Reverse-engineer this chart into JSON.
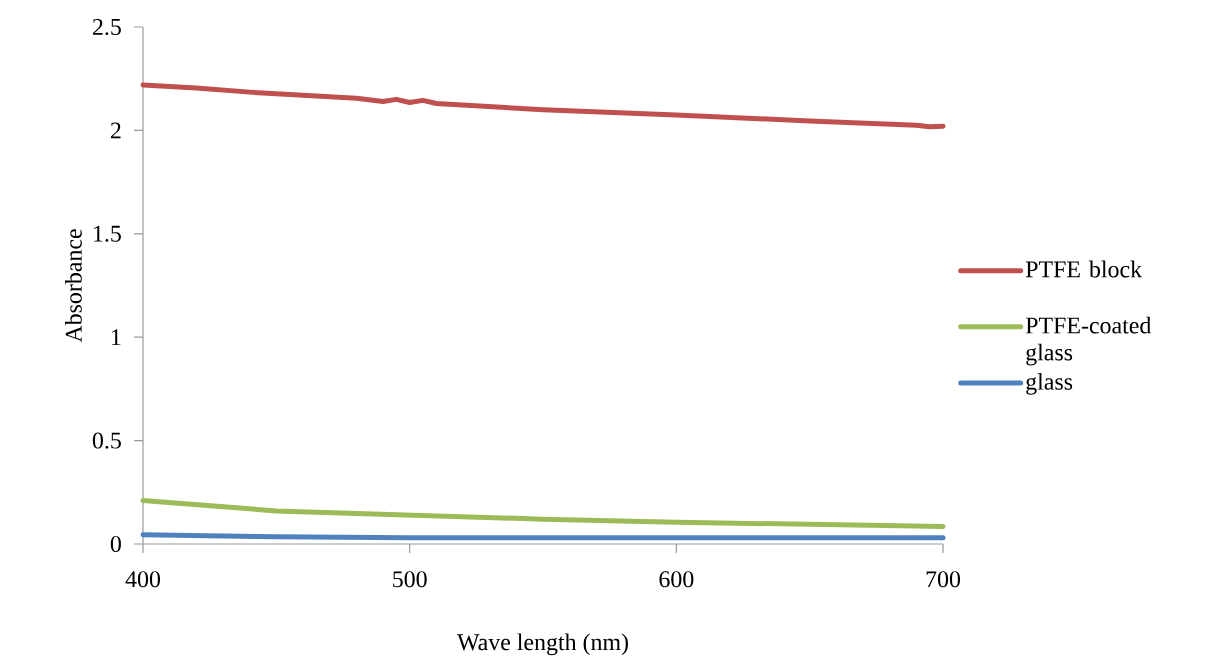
{
  "chart_data": {
    "type": "line",
    "xlabel": "Wave length (nm)",
    "ylabel": "Absorbance",
    "xlim": [
      400,
      700
    ],
    "ylim": [
      0,
      2.5
    ],
    "xticks": [
      400,
      500,
      600,
      700
    ],
    "yticks": [
      0,
      0.5,
      1,
      1.5,
      2,
      2.5
    ],
    "legend": "right",
    "marker": "none",
    "line_style": "solid",
    "series": [
      {
        "name": "PTFE block",
        "color": "#c0504d",
        "x": [
          400,
          420,
          440,
          460,
          480,
          490,
          495,
          500,
          505,
          510,
          550,
          600,
          650,
          690,
          695,
          700
        ],
        "values": [
          2.22,
          2.205,
          2.185,
          2.17,
          2.155,
          2.14,
          2.15,
          2.135,
          2.145,
          2.13,
          2.1,
          2.075,
          2.045,
          2.025,
          2.018,
          2.02
        ]
      },
      {
        "name": "PTFE-coated glass",
        "color": "#9bbb59",
        "x": [
          400,
          450,
          500,
          550,
          600,
          650,
          700
        ],
        "values": [
          0.21,
          0.16,
          0.14,
          0.12,
          0.105,
          0.095,
          0.085
        ]
      },
      {
        "name": "glass",
        "color": "#4f81bd",
        "x": [
          400,
          450,
          500,
          600,
          700
        ],
        "values": [
          0.045,
          0.035,
          0.03,
          0.03,
          0.03
        ]
      }
    ]
  }
}
